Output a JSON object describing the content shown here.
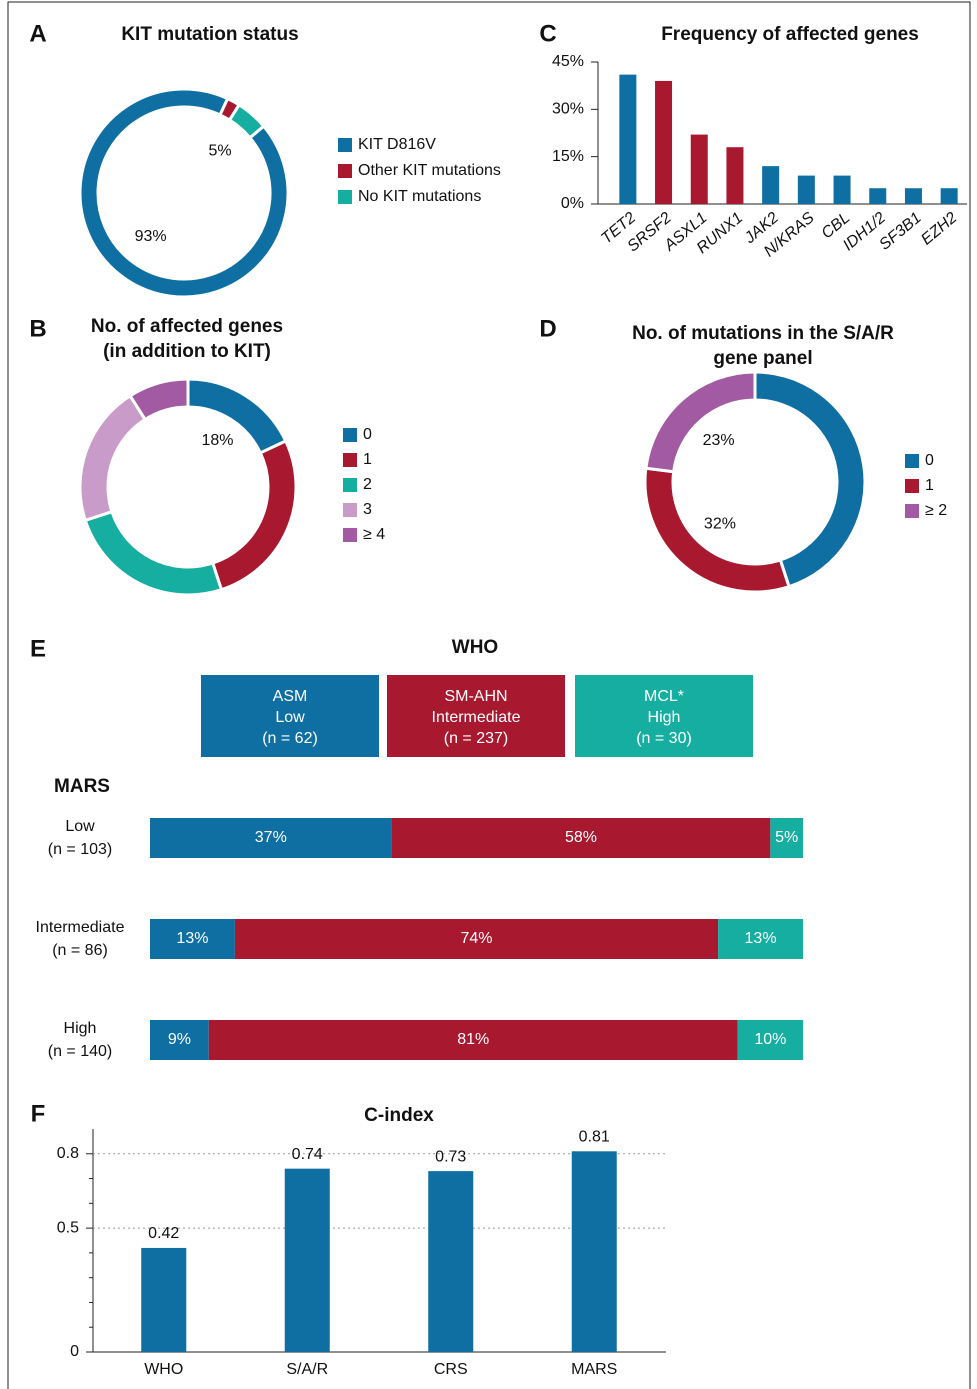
{
  "chart_data": [
    {
      "type": "donut",
      "panel": "A",
      "title": "KIT mutation status",
      "categories": [
        "KIT D816V",
        "Other KIT mutations",
        "No KIT mutations"
      ],
      "values": [
        93,
        2,
        5
      ],
      "value_labels": [
        "93%",
        null,
        "5%"
      ],
      "colors": [
        "#0f6fa3",
        "#a8182f",
        "#16aea0"
      ]
    },
    {
      "type": "donut",
      "panel": "B",
      "title": [
        "No. of affected genes",
        "(in addition to KIT)"
      ],
      "categories": [
        "0",
        "1",
        "2",
        "3",
        "≥ 4"
      ],
      "values": [
        18,
        27,
        25,
        21,
        9
      ],
      "value_labels": [
        "18%",
        null,
        null,
        null,
        null
      ],
      "colors": [
        "#0f6fa3",
        "#a8182f",
        "#16aea0",
        "#c99bc8",
        "#a25aa2"
      ]
    },
    {
      "type": "bar",
      "panel": "C",
      "title": "Frequency of affected genes",
      "categories": [
        "TET2",
        "SRSF2",
        "ASXL1",
        "RUNX1",
        "JAK2",
        "N/KRAS",
        "CBL",
        "IDH1/2",
        "SF3B1",
        "EZH2"
      ],
      "values": [
        41,
        39,
        22,
        18,
        12,
        9,
        9,
        5,
        5,
        5
      ],
      "colors": [
        "#0f6fa3",
        "#a8182f",
        "#a8182f",
        "#a8182f",
        "#0f6fa3",
        "#0f6fa3",
        "#0f6fa3",
        "#0f6fa3",
        "#0f6fa3",
        "#0f6fa3"
      ],
      "ylim": [
        0,
        45
      ],
      "yticks": [
        {
          "value": 0,
          "label": "0%"
        },
        {
          "value": 15,
          "label": "15%"
        },
        {
          "value": 30,
          "label": "30%"
        },
        {
          "value": 45,
          "label": "45%"
        }
      ],
      "grid": false
    },
    {
      "type": "donut",
      "panel": "D",
      "title": [
        "No. of mutations in the S/A/R",
        "gene panel"
      ],
      "categories": [
        "0",
        "1",
        "≥ 2"
      ],
      "values": [
        45,
        32,
        23
      ],
      "value_labels": [
        null,
        "32%",
        "23%"
      ],
      "colors": [
        "#0f6fa3",
        "#a8182f",
        "#a25aa2"
      ]
    },
    {
      "type": "stacked_barh",
      "panel": "E",
      "title": "WHO",
      "ylabel": "MARS",
      "categories": [
        "Low",
        "Intermediate",
        "High"
      ],
      "category_notes": [
        "(n = 103)",
        "(n = 86)",
        "(n = 140)"
      ],
      "xlim": [
        0,
        100
      ],
      "series": [
        {
          "name": "ASM",
          "risk": "Low",
          "note": "(n = 62)",
          "color": "#0f6fa3",
          "values": [
            37,
            13,
            9
          ],
          "value_labels": [
            "37%",
            "13%",
            "9%"
          ]
        },
        {
          "name": "SM-AHN",
          "risk": "Intermediate",
          "note": "(n = 237)",
          "color": "#a8182f",
          "values": [
            58,
            74,
            81
          ],
          "value_labels": [
            "58%",
            "74%",
            "81%"
          ]
        },
        {
          "name": "MCL*",
          "risk": "High",
          "note": "(n = 30)",
          "color": "#16aea0",
          "values": [
            5,
            13,
            10
          ],
          "value_labels": [
            "5%",
            "13%",
            "10%"
          ]
        }
      ]
    },
    {
      "type": "bar",
      "panel": "F",
      "title": "C-index",
      "categories": [
        "WHO",
        "S/A/R",
        "CRS",
        "MARS"
      ],
      "values": [
        0.42,
        0.74,
        0.73,
        0.81
      ],
      "color": "#0f6fa3",
      "show_values": true,
      "ylim": [
        0,
        0.9
      ],
      "yticks": [
        0,
        0.5,
        0.8
      ],
      "minor_yticks": [
        0.1,
        0.2,
        0.3,
        0.4,
        0.6,
        0.7
      ],
      "grid": true
    }
  ]
}
